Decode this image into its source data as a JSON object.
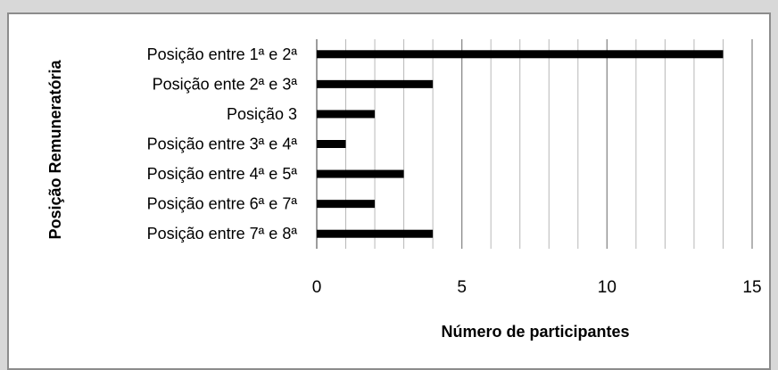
{
  "chart_data": {
    "type": "bar",
    "orientation": "horizontal",
    "categories": [
      "Posição entre 1ª e 2ª",
      "Posição ente 2ª e 3ª",
      "Posição 3",
      "Posição entre 3ª e 4ª",
      "Posição entre 4ª e 5ª",
      "Posição entre 6ª e 7ª",
      "Posição entre 7ª e 8ª"
    ],
    "values": [
      14,
      4,
      2,
      1,
      3,
      2,
      4
    ],
    "xlabel": "Número de participantes",
    "ylabel": "Posição Remuneratória",
    "xlim": [
      0,
      15
    ],
    "major_ticks": [
      0,
      5,
      10,
      15
    ],
    "minor_gridlines": true,
    "grid": true,
    "legend": "none",
    "bar_color": "#000000"
  }
}
